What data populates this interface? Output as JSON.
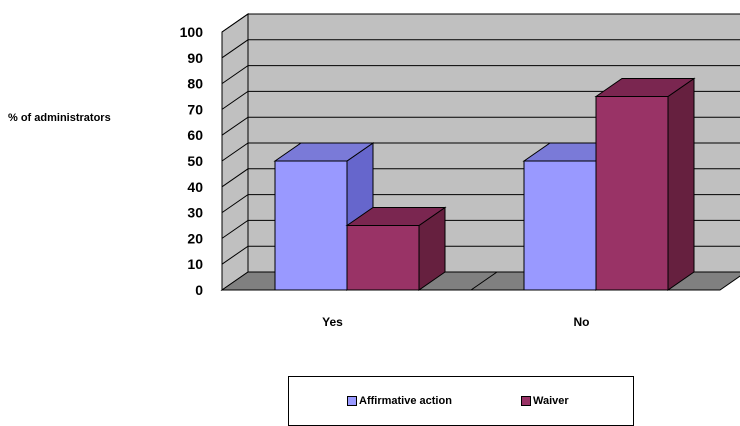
{
  "chart_data": {
    "type": "bar",
    "categories": [
      "Yes",
      "No"
    ],
    "series": [
      {
        "name": "Affirmative action",
        "values": [
          50,
          50
        ],
        "color": "#9999ff",
        "side": "#6666cc",
        "top": "#7a7ad8"
      },
      {
        "name": "Waiver",
        "values": [
          25,
          75
        ],
        "color": "#993366",
        "side": "#66203f",
        "top": "#7a2650"
      }
    ],
    "ylabel": "% of administrators",
    "xlabel": "",
    "ylim": [
      0,
      100
    ],
    "yticks": [
      0,
      10,
      20,
      30,
      40,
      50,
      60,
      70,
      80,
      90,
      100
    ],
    "grid": true,
    "legend_position": "bottom",
    "three_d": true,
    "wall_color": "#c0c0c0",
    "floor_color": "#808080"
  }
}
